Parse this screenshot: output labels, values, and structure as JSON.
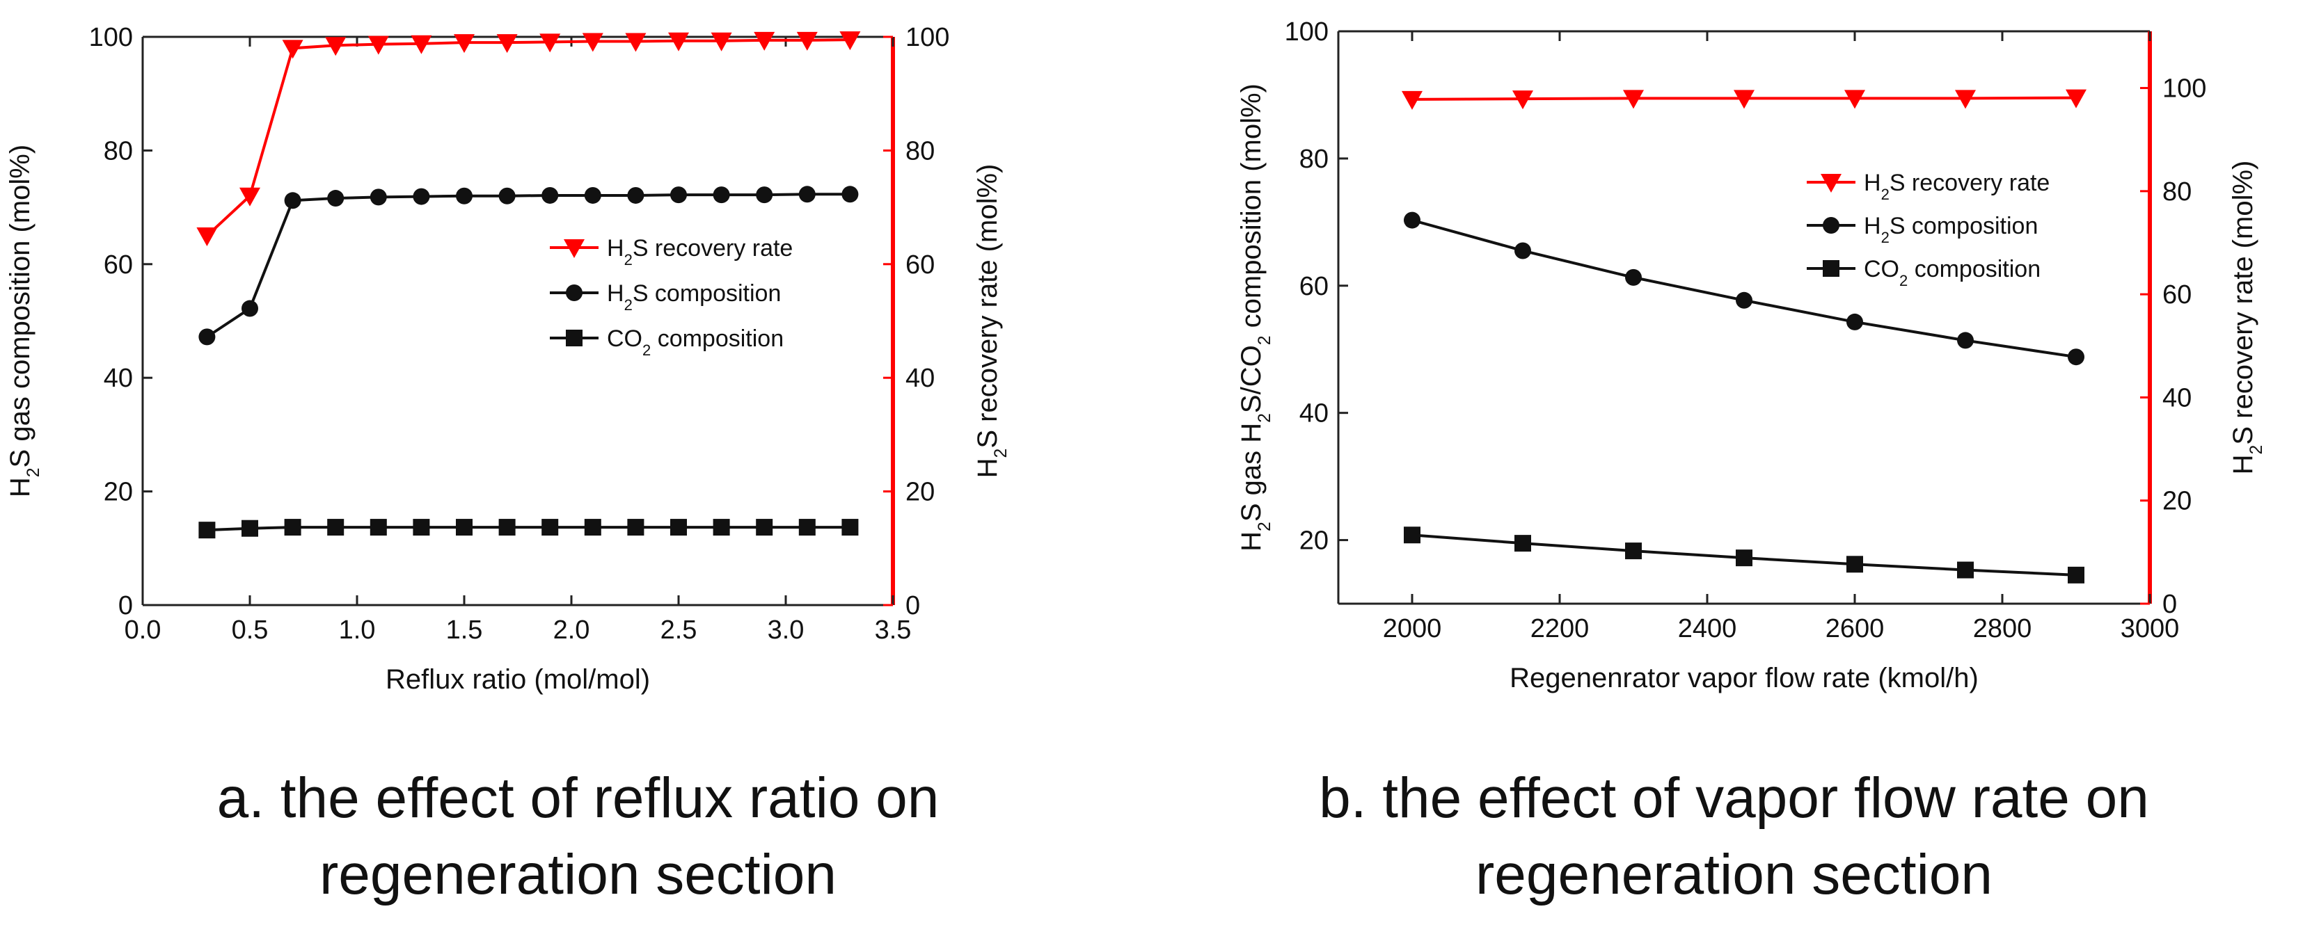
{
  "colors": {
    "black": "#111111",
    "red": "#ff0000",
    "axis": "#222222"
  },
  "chart_data": [
    {
      "type": "line",
      "caption": [
        "a. the effect of reflux ratio on",
        "regeneration section"
      ],
      "xlabel": "Reflux ratio (mol/mol)",
      "ylabel_left": "H2S gas composition (mol%)",
      "ylabel_right": "H2S recovery rate (mol%)",
      "xlim": [
        0,
        3.5
      ],
      "ylim_left": [
        0,
        100
      ],
      "ylim_right": [
        0,
        100
      ],
      "x_ticks": [
        "0.0",
        "0.5",
        "1.0",
        "1.5",
        "2.0",
        "2.5",
        "3.0",
        "3.5"
      ],
      "y_ticks_left": [
        "0",
        "20",
        "40",
        "60",
        "80",
        "100"
      ],
      "y_ticks_right": [
        "0",
        "20",
        "40",
        "60",
        "80",
        "100"
      ],
      "x": [
        0.3,
        0.5,
        0.7,
        0.9,
        1.1,
        1.3,
        1.5,
        1.7,
        1.9,
        2.1,
        2.3,
        2.5,
        2.7,
        2.9,
        3.1,
        3.3
      ],
      "series": [
        {
          "name": "H2S recovery rate",
          "axis": "right",
          "marker": "triangle-down",
          "color": "#ff0000",
          "values": [
            65,
            72,
            98,
            98.5,
            98.7,
            98.8,
            99,
            99,
            99.1,
            99.2,
            99.2,
            99.3,
            99.3,
            99.4,
            99.4,
            99.5
          ]
        },
        {
          "name": "H2S composition",
          "axis": "left",
          "marker": "circle",
          "color": "#111111",
          "values": [
            47.2,
            52.2,
            71.2,
            71.6,
            71.8,
            71.9,
            72,
            72,
            72.1,
            72.1,
            72.1,
            72.2,
            72.2,
            72.2,
            72.3,
            72.3
          ]
        },
        {
          "name": "CO2 composition",
          "axis": "left",
          "marker": "square",
          "color": "#111111",
          "values": [
            13.2,
            13.5,
            13.7,
            13.7,
            13.7,
            13.7,
            13.7,
            13.7,
            13.7,
            13.7,
            13.7,
            13.7,
            13.7,
            13.7,
            13.7,
            13.7
          ]
        }
      ],
      "legend": [
        {
          "pre": "H",
          "sub": "2",
          "post": "S recovery rate"
        },
        {
          "pre": "H",
          "sub": "2",
          "post": "S composition"
        },
        {
          "pre": "CO",
          "sub": "2",
          "post": " composition"
        }
      ],
      "legend_position": "right-middle"
    },
    {
      "type": "line",
      "caption": [
        "b. the effect of vapor flow rate on",
        "regeneration section"
      ],
      "xlabel": "Regenenrator vapor flow rate (kmol/h)",
      "ylabel_left": "H2S gas H2S/CO2 composition (mol%)",
      "ylabel_right": "H2S recovery rate (mol%)",
      "xlim": [
        1900,
        3000
      ],
      "ylim_left": [
        10,
        100
      ],
      "ylim_right": [
        0,
        111
      ],
      "x_ticks": [
        "2000",
        "2200",
        "2400",
        "2600",
        "2800",
        "3000"
      ],
      "y_ticks_left": [
        "20",
        "40",
        "60",
        "80",
        "100"
      ],
      "y_ticks_right": [
        "0",
        "20",
        "40",
        "60",
        "80",
        "100"
      ],
      "x": [
        2000,
        2150,
        2300,
        2450,
        2600,
        2750,
        2900
      ],
      "series": [
        {
          "name": "H2S recovery rate",
          "axis": "right",
          "marker": "triangle-down",
          "color": "#ff0000",
          "values": [
            97.8,
            97.9,
            98,
            98,
            98,
            98,
            98.1
          ]
        },
        {
          "name": "H2S composition",
          "axis": "left",
          "marker": "circle",
          "color": "#111111",
          "values": [
            70.3,
            65.5,
            61.3,
            57.7,
            54.3,
            51.4,
            48.8
          ]
        },
        {
          "name": "CO2 composition",
          "axis": "left",
          "marker": "square",
          "color": "#111111",
          "values": [
            20.8,
            19.5,
            18.3,
            17.2,
            16.2,
            15.3,
            14.5
          ]
        }
      ],
      "legend": [
        {
          "pre": "H",
          "sub": "2",
          "post": "S recovery rate"
        },
        {
          "pre": "H",
          "sub": "2",
          "post": "S composition"
        },
        {
          "pre": "CO",
          "sub": "2",
          "post": " composition"
        }
      ],
      "legend_position": "right-upper"
    }
  ]
}
